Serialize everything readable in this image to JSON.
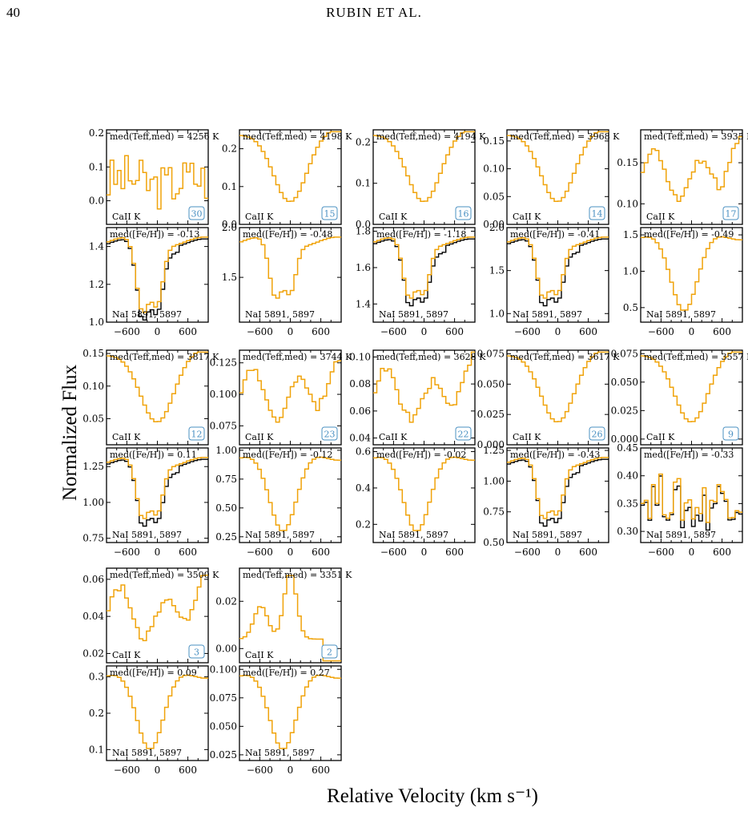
{
  "header": {
    "page_number": "40",
    "running_head": "RUBIN ET AL."
  },
  "figure": {
    "ylabel": "Normalized Flux",
    "xlabel": "Relative Velocity (km s⁻¹)"
  },
  "colors": {
    "stack": "#f0a30a",
    "model": "#000000",
    "badge": "#4a90c2"
  },
  "chart_data": [
    {
      "id": 1,
      "teff": "med(Tₑₒₒ,med) = 4256 K",
      "teff_label": "med(Teff,med) = 4256 K",
      "n": "30",
      "ca_ticks": [
        "0.0",
        "0.1",
        "0.2"
      ],
      "ca_ylim": [
        -0.07,
        0.21
      ],
      "ca_shape": "noisy",
      "feh_label": "med([Fe/H]) = -0.13",
      "na_ticks": [
        "1.0",
        "1.2",
        "1.4"
      ],
      "na_ylim": [
        1.0,
        1.5
      ],
      "na_shape": "doublet-deep",
      "na_black": true
    },
    {
      "id": 2,
      "teff_label": "med(Teff,med) = 4198 K",
      "n": "15",
      "ca_ticks": [
        "0.0",
        "0.1",
        "0.2"
      ],
      "ca_ylim": [
        0.0,
        0.25
      ],
      "ca_shape": "smooth",
      "feh_label": "med([Fe/H]) = -0.48",
      "na_ticks": [
        "1.5",
        "2.0"
      ],
      "na_ylim": [
        1.05,
        2.0
      ],
      "na_shape": "doublet",
      "na_black": false
    },
    {
      "id": 3,
      "teff_label": "med(Teff,med) = 4194 K",
      "n": "16",
      "ca_ticks": [
        "0.0",
        "0.1",
        "0.2"
      ],
      "ca_ylim": [
        0.0,
        0.23
      ],
      "ca_shape": "smooth",
      "feh_label": "med([Fe/H]) = -1.18",
      "na_ticks": [
        "1.4",
        "1.6",
        "1.8"
      ],
      "na_ylim": [
        1.3,
        1.82
      ],
      "na_shape": "doublet",
      "na_black": true
    },
    {
      "id": 4,
      "teff_label": "med(Teff,med) = 3968 K",
      "n": "14",
      "ca_ticks": [
        "0.00",
        "0.05",
        "0.10",
        "0.15"
      ],
      "ca_ylim": [
        0.0,
        0.17
      ],
      "ca_shape": "smooth",
      "feh_label": "med([Fe/H]) = -0.41",
      "na_ticks": [
        "1.0",
        "1.5",
        "2.0"
      ],
      "na_ylim": [
        0.9,
        2.0
      ],
      "na_shape": "doublet",
      "na_black": true
    },
    {
      "id": 5,
      "teff_label": "med(Teff,med) = 3935 K",
      "n": "17",
      "ca_ticks": [
        "0.10",
        "0.15"
      ],
      "ca_ylim": [
        0.075,
        0.19
      ],
      "ca_shape": "bumpy",
      "feh_label": "med([Fe/H]) = -0.49",
      "na_ticks": [
        "0.5",
        "1.0",
        "1.5"
      ],
      "na_ylim": [
        0.3,
        1.6
      ],
      "na_shape": "broad",
      "na_black": false
    },
    {
      "id": 6,
      "teff_label": "med(Teff,med) = 3817 K",
      "n": "12",
      "ca_ticks": [
        "0.05",
        "0.10",
        "0.15"
      ],
      "ca_ylim": [
        0.01,
        0.155
      ],
      "ca_shape": "smooth",
      "feh_label": "med([Fe/H]) = 0.11",
      "na_ticks": [
        "0.75",
        "1.00",
        "1.25"
      ],
      "na_ylim": [
        0.72,
        1.38
      ],
      "na_shape": "doublet",
      "na_black": true
    },
    {
      "id": 7,
      "teff_label": "med(Teff,med) = 3744 K",
      "n": "23",
      "ca_ticks": [
        "0.075",
        "0.100",
        "0.125"
      ],
      "ca_ylim": [
        0.06,
        0.135
      ],
      "ca_shape": "bumpy",
      "feh_label": "med([Fe/H]) = -0.12",
      "na_ticks": [
        "0.25",
        "0.50",
        "0.75",
        "1.00"
      ],
      "na_ylim": [
        0.2,
        1.02
      ],
      "na_shape": "broad",
      "na_black": false
    },
    {
      "id": 8,
      "teff_label": "med(Teff,med) = 3628 K",
      "n": "22",
      "ca_ticks": [
        "0.04",
        "0.06",
        "0.08",
        "0.10"
      ],
      "ca_ylim": [
        0.035,
        0.105
      ],
      "ca_shape": "bumpy",
      "feh_label": "med([Fe/H]) = -0.02",
      "na_ticks": [
        "0.2",
        "0.4",
        "0.6"
      ],
      "na_ylim": [
        0.1,
        0.62
      ],
      "na_shape": "broad",
      "na_black": false
    },
    {
      "id": 9,
      "teff_label": "med(Teff,med) = 3617 K",
      "n": "26",
      "ca_ticks": [
        "0.000",
        "0.025",
        "0.050",
        "0.075"
      ],
      "ca_ylim": [
        0.0,
        0.078
      ],
      "ca_shape": "smooth",
      "feh_label": "med([Fe/H]) = -0.43",
      "na_ticks": [
        "0.50",
        "0.75",
        "1.00",
        "1.25"
      ],
      "na_ylim": [
        0.5,
        1.27
      ],
      "na_shape": "doublet",
      "na_black": true
    },
    {
      "id": 10,
      "teff_label": "med(Teff,med) = 3557 K",
      "n": "9",
      "ca_ticks": [
        "0.000",
        "0.025",
        "0.050",
        "0.075"
      ],
      "ca_ylim": [
        -0.005,
        0.078
      ],
      "ca_shape": "smooth",
      "feh_label": "med([Fe/H]) = -0.33",
      "na_ticks": [
        "0.30",
        "0.35",
        "0.40",
        "0.45"
      ],
      "na_ylim": [
        0.28,
        0.45
      ],
      "na_shape": "noisy",
      "na_black": true
    },
    {
      "id": 11,
      "teff_label": "med(Teff,med) = 3500 K",
      "n": "3",
      "ca_ticks": [
        "0.02",
        "0.04",
        "0.06"
      ],
      "ca_ylim": [
        0.015,
        0.066
      ],
      "ca_shape": "bumpy",
      "feh_label": "med([Fe/H]) = 0.09",
      "na_ticks": [
        "0.1",
        "0.2",
        "0.3"
      ],
      "na_ylim": [
        0.07,
        0.33
      ],
      "na_shape": "broad",
      "na_black": false
    },
    {
      "id": 12,
      "teff_label": "med(Teff,med) = 3351 K",
      "n": "2",
      "ca_ticks": [
        "0.00",
        "0.02"
      ],
      "ca_ylim": [
        -0.006,
        0.034
      ],
      "ca_shape": "peak",
      "feh_label": "med([Fe/H]) = 0.27",
      "na_ticks": [
        "0.025",
        "0.050",
        "0.075",
        "0.100"
      ],
      "na_ylim": [
        0.02,
        0.103
      ],
      "na_shape": "broad",
      "na_black": false
    }
  ],
  "common": {
    "type": "line",
    "x_range": [
      -1000,
      1000
    ],
    "x_ticks": [
      "−600",
      "0",
      "600"
    ],
    "ca_line": "CaII K",
    "na_line": "NaI 5891, 5897",
    "legend": "none"
  }
}
